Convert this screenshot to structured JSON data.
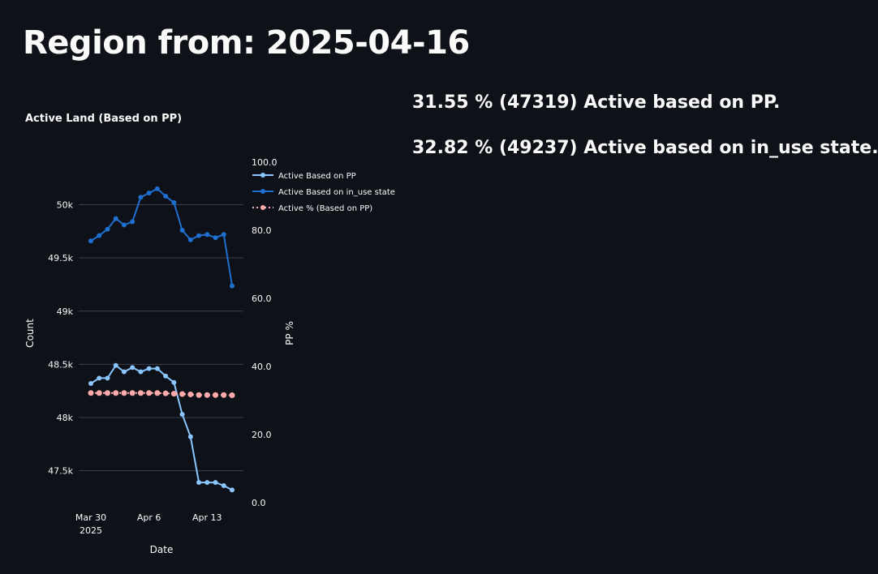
{
  "page": {
    "title": "Region from: 2025-04-16",
    "stat_pp": "31.55 % (47319) Active based on PP.",
    "stat_in_use": "32.82 % (49237) Active based on in_use state."
  },
  "colors": {
    "background": "#0e1117",
    "series_pp": "#8ac6ff",
    "series_in_use": "#1f6fd1",
    "series_pct": "#ffabab",
    "grid": "#3a3f4b"
  },
  "chart_data": {
    "type": "line",
    "title": "Active Land (Based on PP)",
    "xlabel": "Date",
    "ylabel": "Count",
    "y2label": "PP %",
    "x": [
      "2025-03-30",
      "2025-03-31",
      "2025-04-01",
      "2025-04-02",
      "2025-04-03",
      "2025-04-04",
      "2025-04-05",
      "2025-04-06",
      "2025-04-07",
      "2025-04-08",
      "2025-04-09",
      "2025-04-10",
      "2025-04-11",
      "2025-04-12",
      "2025-04-13",
      "2025-04-14",
      "2025-04-15",
      "2025-04-16"
    ],
    "x_ticks": [
      {
        "date": "2025-03-30",
        "label": "Mar 30",
        "sublabel": "2025"
      },
      {
        "date": "2025-04-06",
        "label": "Apr 6",
        "sublabel": ""
      },
      {
        "date": "2025-04-13",
        "label": "Apr 13",
        "sublabel": ""
      }
    ],
    "ylim": [
      47200,
      50400
    ],
    "y_ticks": [
      47500,
      48000,
      48500,
      49000,
      49500,
      50000
    ],
    "y_tick_labels": [
      "47.5k",
      "48k",
      "48.5k",
      "49k",
      "49.5k",
      "50k"
    ],
    "y2lim": [
      0,
      100
    ],
    "y2_ticks": [
      0,
      20,
      40,
      60,
      80,
      100
    ],
    "y2_tick_labels": [
      "0.0",
      "20.0",
      "40.0",
      "60.0",
      "80.0",
      "100.0"
    ],
    "grid": true,
    "legend_position": "top-right",
    "series": [
      {
        "name": "Active Based on PP",
        "axis": "y",
        "style": "solid",
        "values": [
          48320,
          48370,
          48370,
          48490,
          48430,
          48470,
          48430,
          48460,
          48460,
          48390,
          48330,
          48030,
          47820,
          47390,
          47390,
          47390,
          47360,
          47319
        ]
      },
      {
        "name": "Active Based on in_use state",
        "axis": "y",
        "style": "solid",
        "values": [
          49660,
          49710,
          49770,
          49870,
          49810,
          49840,
          50070,
          50110,
          50150,
          50080,
          50020,
          49760,
          49670,
          49710,
          49720,
          49690,
          49720,
          49237
        ]
      },
      {
        "name": "Active % (Based on PP)",
        "axis": "y2",
        "style": "dotted",
        "values": [
          32.2,
          32.2,
          32.2,
          32.2,
          32.2,
          32.2,
          32.2,
          32.2,
          32.2,
          32.1,
          32.0,
          31.9,
          31.8,
          31.6,
          31.6,
          31.6,
          31.6,
          31.55
        ]
      }
    ]
  }
}
